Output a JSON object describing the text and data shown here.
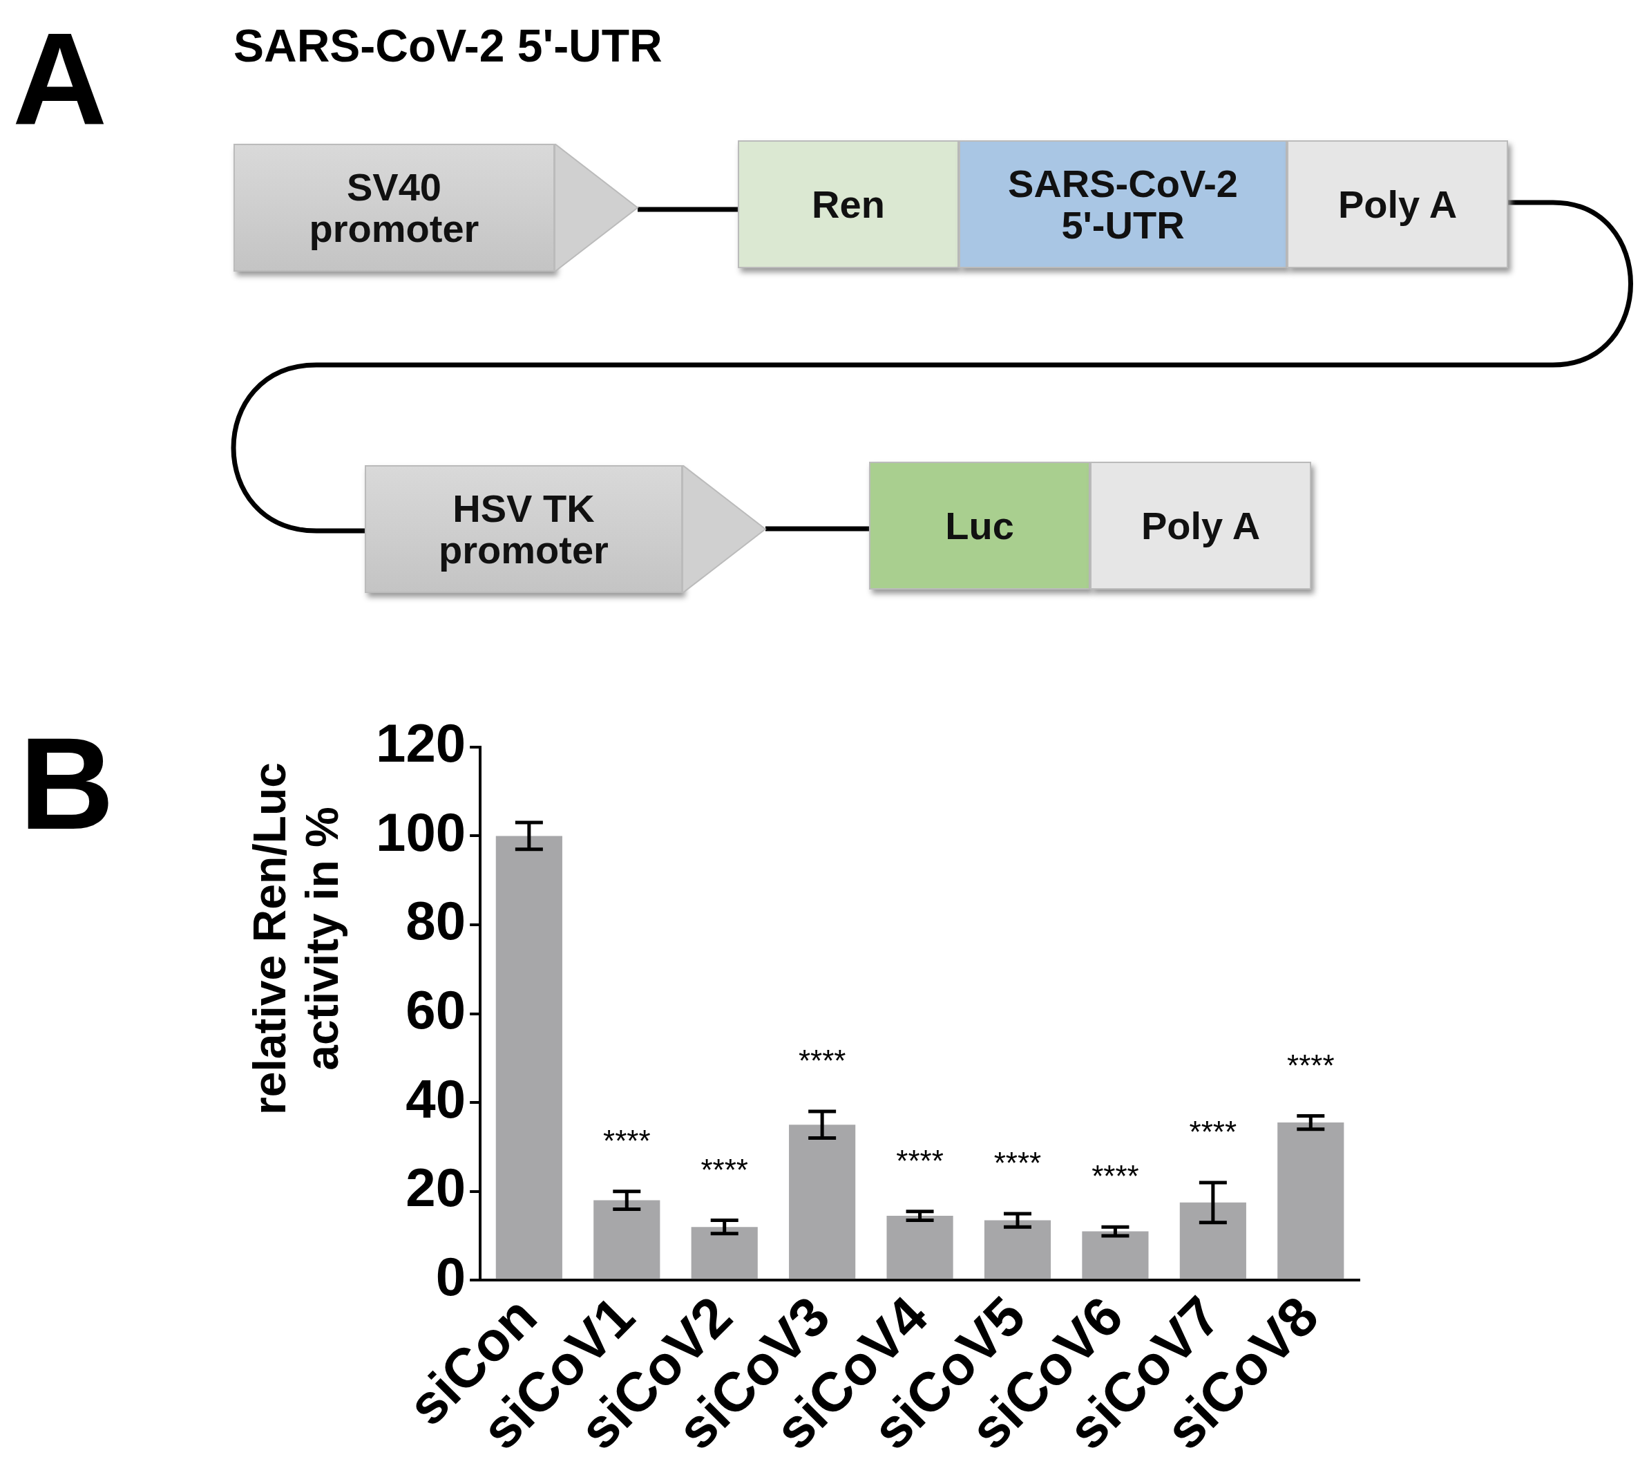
{
  "chart_data": [
    {
      "type": "other",
      "title": "SARS-CoV-2 5'-UTR",
      "annotations": [
        "A",
        "SV40 promoter",
        "Ren",
        "SARS-CoV-2 5'-UTR",
        "Poly A",
        "HSV TK promoter",
        "Luc",
        "Poly A"
      ]
    },
    {
      "type": "bar",
      "categories": [
        "siCon",
        "siCoV1",
        "siCoV2",
        "siCoV3",
        "siCoV4",
        "siCoV5",
        "siCoV6",
        "siCoV7",
        "siCoV8"
      ],
      "values": [
        100,
        18,
        12,
        35,
        14.5,
        13.5,
        11,
        17.5,
        35.5
      ],
      "errors": [
        3,
        2,
        1.5,
        3,
        1,
        1.5,
        1,
        4.5,
        1.5
      ],
      "color": "#a7a7a9",
      "ylabel": "relative Ren/Luc activity in %",
      "ylim": [
        0,
        120
      ],
      "yticks": [
        0,
        20,
        40,
        60,
        80,
        100,
        120
      ],
      "grid": false,
      "annotations": [
        "B",
        "****",
        "****",
        "****",
        "****",
        "****",
        "****",
        "****",
        "****"
      ]
    }
  ]
}
